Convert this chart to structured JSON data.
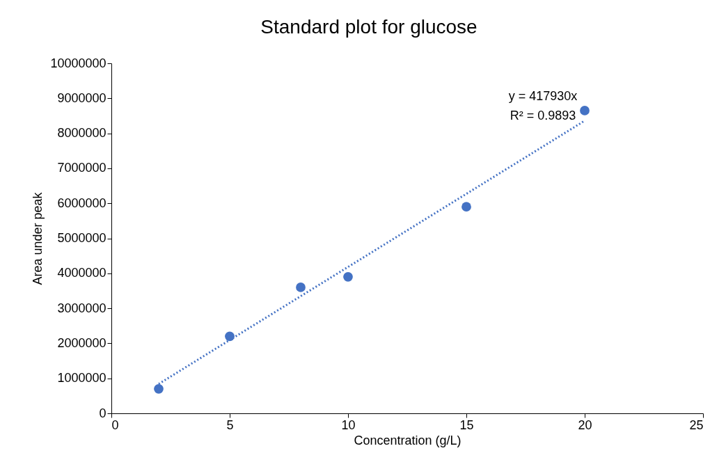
{
  "chart_data": {
    "type": "scatter",
    "title": "Standard plot for glucose",
    "xlabel": "Concentration (g/L)",
    "ylabel": "Area under peak",
    "x": [
      2,
      5,
      8,
      10,
      15,
      20
    ],
    "series": [
      {
        "color": "#4472c4",
        "values": [
          700000,
          2200000,
          3600000,
          3900000,
          5900000,
          8650000
        ],
        "marker": "circle"
      },
      {
        "type": "line",
        "color": "#4472c4",
        "x": [
          2,
          20
        ],
        "values": [
          840000,
          8360000
        ],
        "line_style": "dotted"
      }
    ],
    "xlim": [
      0,
      25
    ],
    "xticks": [
      0,
      5,
      10,
      15,
      20,
      25
    ],
    "ylim": [
      0,
      10000000
    ],
    "yticks": [
      0,
      1000000,
      2000000,
      3000000,
      4000000,
      5000000,
      6000000,
      7000000,
      8000000,
      9000000,
      10000000
    ],
    "annotations": [
      "y = 417930x",
      "R² = 0.9893"
    ]
  }
}
